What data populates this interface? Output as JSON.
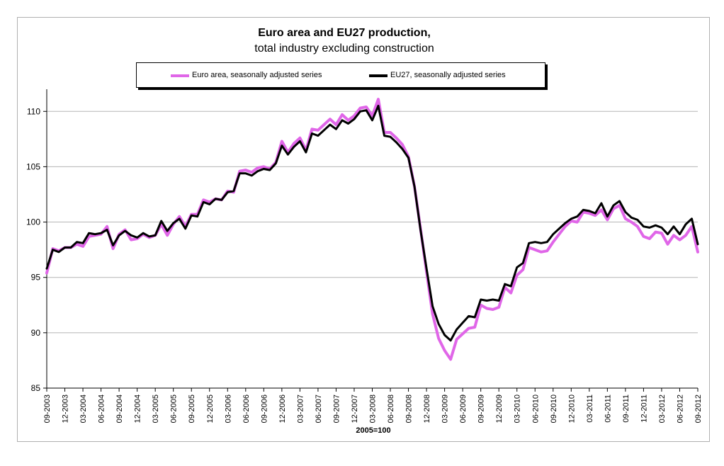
{
  "chart_data": {
    "type": "line",
    "title": "Euro area and EU27 production,",
    "subtitle": "total industry excluding construction",
    "xlabel": "2005=100",
    "ylabel": "",
    "ylim": [
      85,
      112
    ],
    "yticks": [
      85,
      90,
      95,
      100,
      105,
      110
    ],
    "grid": "horizontal",
    "legend_position": "top",
    "x_start": "09-2003",
    "x_end": "09-2012",
    "x_tick_labels": [
      "09-2003",
      "12-2003",
      "03-2004",
      "06-2004",
      "09-2004",
      "12-2004",
      "03-2005",
      "06-2005",
      "09-2005",
      "12-2005",
      "03-2006",
      "06-2006",
      "09-2006",
      "12-2006",
      "03-2007",
      "06-2007",
      "09-2007",
      "12-2007",
      "03-2008",
      "06-2008",
      "09-2008",
      "12-2008",
      "03-2009",
      "06-2009",
      "09-2009",
      "12-2009",
      "03-2010",
      "06-2010",
      "09-2010",
      "12-2010",
      "03-2011",
      "06-2011",
      "09-2011",
      "12-2011",
      "03-2012",
      "06-2012",
      "09-2012"
    ],
    "series": [
      {
        "name": "Euro area, seasonally adjusted series",
        "color": "#e066e8",
        "values": [
          95.4,
          97.6,
          97.4,
          97.7,
          97.7,
          98.0,
          97.8,
          98.7,
          98.8,
          98.9,
          99.6,
          97.6,
          98.9,
          99.3,
          98.4,
          98.5,
          98.9,
          98.6,
          98.8,
          99.8,
          98.8,
          99.8,
          100.5,
          99.6,
          100.7,
          100.7,
          102.0,
          101.8,
          102.1,
          102.0,
          102.8,
          102.7,
          104.6,
          104.7,
          104.5,
          104.9,
          105.0,
          104.8,
          105.4,
          107.3,
          106.3,
          107.1,
          107.6,
          106.5,
          108.4,
          108.3,
          108.8,
          109.3,
          108.8,
          109.7,
          109.2,
          109.6,
          110.3,
          110.4,
          109.6,
          111.1,
          108.1,
          108.1,
          107.6,
          107.0,
          105.9,
          103.2,
          99.4,
          95.5,
          91.7,
          89.5,
          88.4,
          87.6,
          89.4,
          89.9,
          90.4,
          90.5,
          92.5,
          92.2,
          92.1,
          92.3,
          94.1,
          93.6,
          95.2,
          95.7,
          97.7,
          97.5,
          97.3,
          97.4,
          98.2,
          98.9,
          99.6,
          100.1,
          100.0,
          100.9,
          100.8,
          100.6,
          101.1,
          100.2,
          101.2,
          101.5,
          100.3,
          100.0,
          99.6,
          98.7,
          98.5,
          99.1,
          99.0,
          98.0,
          98.8,
          98.4,
          98.8,
          99.6,
          97.3
        ]
      },
      {
        "name": "EU27, seasonally adjusted series",
        "color": "#000000",
        "values": [
          95.8,
          97.5,
          97.3,
          97.7,
          97.7,
          98.2,
          98.1,
          99.0,
          98.9,
          99.0,
          99.3,
          97.9,
          98.8,
          99.2,
          98.8,
          98.6,
          99.0,
          98.7,
          98.8,
          100.1,
          99.2,
          99.9,
          100.3,
          99.4,
          100.6,
          100.5,
          101.8,
          101.6,
          102.1,
          102.0,
          102.7,
          102.8,
          104.4,
          104.4,
          104.2,
          104.6,
          104.8,
          104.7,
          105.3,
          106.9,
          106.1,
          106.8,
          107.3,
          106.3,
          108.0,
          107.8,
          108.3,
          108.8,
          108.4,
          109.2,
          108.9,
          109.3,
          110.0,
          110.1,
          109.2,
          110.5,
          107.8,
          107.7,
          107.2,
          106.6,
          105.8,
          103.2,
          99.3,
          95.8,
          92.4,
          90.8,
          89.8,
          89.3,
          90.3,
          90.9,
          91.5,
          91.4,
          93.0,
          92.9,
          93.0,
          92.9,
          94.4,
          94.2,
          95.9,
          96.3,
          98.1,
          98.2,
          98.1,
          98.2,
          98.9,
          99.4,
          99.9,
          100.3,
          100.5,
          101.1,
          101.0,
          100.8,
          101.7,
          100.5,
          101.5,
          101.9,
          100.9,
          100.4,
          100.2,
          99.6,
          99.5,
          99.7,
          99.5,
          98.9,
          99.6,
          98.9,
          99.8,
          100.3,
          98.0
        ]
      }
    ]
  }
}
